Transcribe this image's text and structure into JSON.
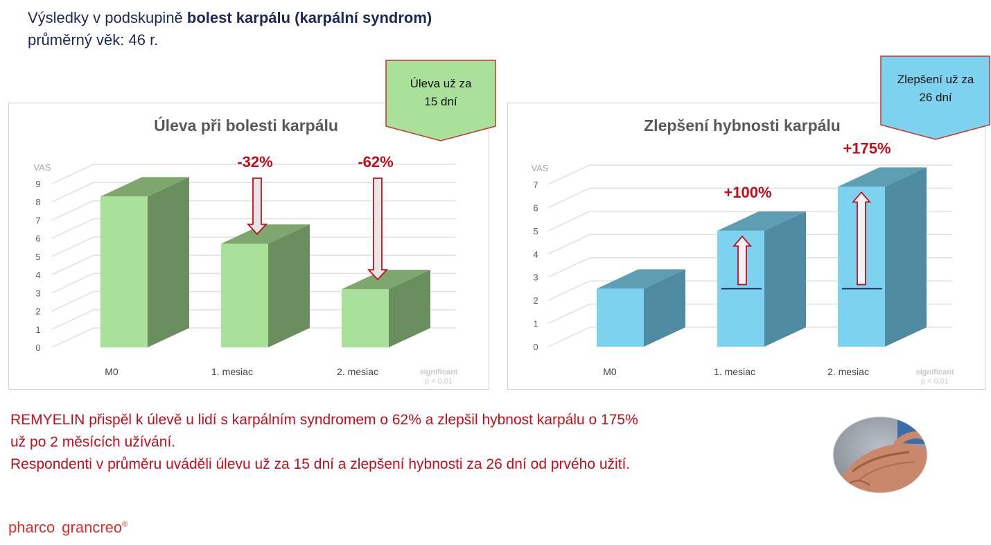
{
  "header": {
    "line1_prefix": "Výsledky v podskupině ",
    "line1_bold": "bolest karpálu (karpální syndrom)",
    "line2": "průměrný věk: 46 r."
  },
  "callouts": {
    "left": {
      "line1": "Úleva už za",
      "line2": "15 dní",
      "color": "#a9e09a"
    },
    "right": {
      "line1": "Zlepšení už za",
      "line2": "26 dní",
      "color": "#7dd3ef"
    }
  },
  "summary": {
    "line1": "REMYELIN přispěl k úlevě u lidí s karpálním syndromem o 62% a zlepšil hybnost karpálu o 175%",
    "line2": "už po 2 měsících užívání.",
    "line3": "Respondenti v průměru uváděli úlevu už za 15 dní a zlepšení hybnosti za 26 dní od prvého užití."
  },
  "logo": {
    "part1": "pharco",
    "part2": "grancreo"
  },
  "chart_data": [
    {
      "type": "bar",
      "title": "Úleva při bolesti karpálu",
      "ylabel": "VAS",
      "categories": [
        "M0",
        "1. mesiac",
        "2. mesiac"
      ],
      "values": [
        8.3,
        5.7,
        3.2
      ],
      "ylim": [
        0,
        9
      ],
      "yticks": [
        0,
        1,
        2,
        3,
        4,
        5,
        6,
        7,
        8,
        9
      ],
      "annotations": [
        {
          "category": "1. mesiac",
          "text": "-32%",
          "arrow": "down"
        },
        {
          "category": "2. mesiac",
          "text": "-62%",
          "arrow": "down"
        }
      ],
      "footnote_line1": "significant",
      "footnote_line2": "p < 0,01",
      "colors": {
        "front": "#a9e09a",
        "side": "#6a8e5e",
        "top": "#7ea66f"
      }
    },
    {
      "type": "bar",
      "title": "Zlepšení hybnosti karpálu",
      "ylabel": "VAS",
      "categories": [
        "M0",
        "1. mesiac",
        "2. mesiac"
      ],
      "values": [
        2.5,
        5.0,
        6.9
      ],
      "ylim": [
        0,
        7
      ],
      "yticks": [
        0,
        1,
        2,
        3,
        4,
        5,
        6,
        7
      ],
      "baseline_marker": 2.5,
      "annotations": [
        {
          "category": "1. mesiac",
          "text": "+100%",
          "arrow": "up"
        },
        {
          "category": "2. mesiac",
          "text": "+175%",
          "arrow": "up"
        }
      ],
      "footnote_line1": "significant",
      "footnote_line2": "p < 0,01",
      "colors": {
        "front": "#7dd3ef",
        "side": "#4e8aa0",
        "top": "#5e9eb3"
      }
    }
  ]
}
